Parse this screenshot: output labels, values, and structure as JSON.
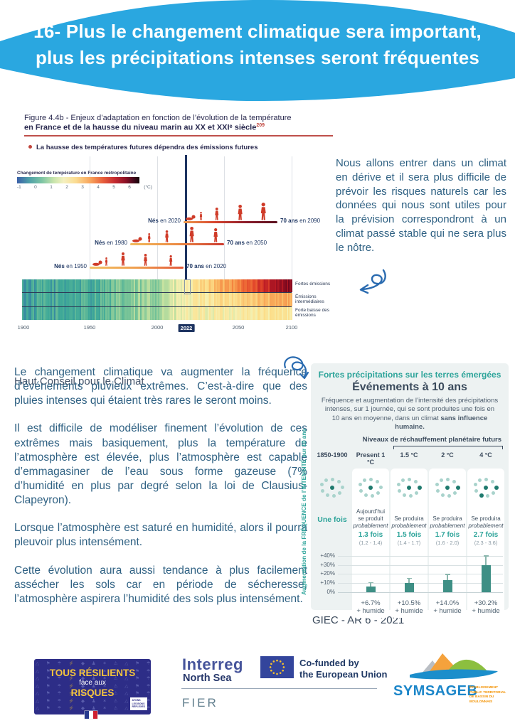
{
  "header": {
    "title_line1": "16- Plus le changement climatique sera important,",
    "title_line2": "plus les précipitations intenses seront fréquentes"
  },
  "figure": {
    "title_line1": "Figure 4.4b - Enjeux d’adaptation en fonction de l’évolution de la température",
    "title_line2": "en France et de la hausse du niveau marin au XX et XXIᵉ siècle",
    "title_sup": "209",
    "bullet": "La hausse des températures futures dépendra des émissions futures",
    "colorbar_label": "Changement de température en France métropolitaine",
    "colorbar_ticks": [
      "-1",
      "0",
      "1",
      "2",
      "3",
      "4",
      "5",
      "6"
    ],
    "colorbar_unit": "(°C)",
    "generations": [
      {
        "born_bold": "Nés",
        "born_rest": "en 1950",
        "seventy_bold": "70 ans",
        "seventy_rest": "en 2020"
      },
      {
        "born_bold": "Nés",
        "born_rest": "en 1980",
        "seventy_bold": "70 ans",
        "seventy_rest": "en 2050"
      },
      {
        "born_bold": "Nés",
        "born_rest": "en 2020",
        "seventy_bold": "70 ans",
        "seventy_rest": "en 2090"
      }
    ],
    "stripe_labels": [
      "Fortes émissions",
      "Émissions intermédiaires",
      "Forte baisse des émissions"
    ],
    "x_ticks": [
      "1900",
      "1950",
      "2000",
      "2022",
      "2050",
      "2100"
    ],
    "highlight_year": "2022",
    "source": "Haut Conseil pour le Climat"
  },
  "aside_text": "Nous allons entrer dans un climat en dérive et il sera plus difficile de prévoir les risques naturels car les données qui nous sont utiles pour la prévision correspondront à un climat passé stable qui ne sera plus le nôtre.",
  "body": {
    "p1": "Le changement climatique va augmenter la fréquence d’événements pluvieux extrêmes. C’est-à-dire que des pluies intenses qui étaient très rares le seront moins.",
    "p2": "Il est difficile de modéliser finement l’évolution de ces extrêmes mais basiquement, plus la température de l’atmosphère est élevée, plus l’atmosphère est capable d’emmagasiner de l’eau sous forme gazeuse (7% d’humidité en plus par degré selon la loi de Clausius-Clapeyron).",
    "p3": "Lorsque l’atmosphère est saturé en humidité, alors il pourra pleuvoir plus intensément.",
    "p4": "Cette évolution aura aussi tendance à plus facilement assécher les sols car en période de sécheresse, l’atmosphère aspirera l’humidité des sols plus intensément."
  },
  "precip_chart": {
    "title": "Fortes précipitations sur les terres émergées",
    "subtitle": "Événements à 10 ans",
    "description_pre": "Fréquence et augmentation de l’intensité des précipitations intenses, sur 1 journée, qui se sont produites une fois en 10 ans en moyenne, dans un climat ",
    "description_bold": "sans influence humaine.",
    "levels_label": "Niveaux de réchauffement planétaire futurs",
    "y_axis_label": "Augmentation de la FRÉQUENCE de l’INTENSITÉ sur 10 ans",
    "y_ticks": [
      "+40%",
      "+30%",
      "+20%",
      "+10%",
      "0%"
    ],
    "columns": [
      {
        "header": "1850-1900",
        "label": "Une fois",
        "dots_dark": 1
      },
      {
        "header": "Present 1 °C",
        "prob1": "Aujourd’hui",
        "prob2": "se produit",
        "prob3": "probablement",
        "times": "1.3 fois",
        "range": "(1.2 - 1.4)",
        "bar_value": 6.7,
        "bar_label1": "+6.7%",
        "bar_label2": "+ humide",
        "dots_dark": 1
      },
      {
        "header": "1.5 °C",
        "prob1": "Se produira",
        "prob2": "probablement",
        "times": "1.5 fois",
        "range": "(1.4 - 1.7)",
        "bar_value": 10.5,
        "bar_label1": "+10.5%",
        "bar_label2": "+ humide",
        "dots_dark": 2
      },
      {
        "header": "2 °C",
        "prob1": "Se produira",
        "prob2": "probablement",
        "times": "1.7 fois",
        "range": "(1.6 - 2.0)",
        "bar_value": 14.0,
        "bar_label1": "+14.0%",
        "bar_label2": "+ humide",
        "dots_dark": 2
      },
      {
        "header": "4 °C",
        "prob1": "Se produira",
        "prob2": "probablement",
        "times": "2.7 fois",
        "range": "(2.3 - 3.6)",
        "bar_value": 30.2,
        "bar_label1": "+30.2%",
        "bar_label2": "+ humide",
        "dots_dark": 3
      }
    ],
    "source": "GIEC - AR 6 - 2021"
  },
  "chart_data": [
    {
      "type": "bar",
      "title": "Fortes précipitations sur les terres émergées — Événements à 10 ans",
      "categories": [
        "1850-1900",
        "Present 1 °C",
        "1.5 °C",
        "2 °C",
        "4 °C"
      ],
      "frequency_fois": [
        1.0,
        1.3,
        1.5,
        1.7,
        2.7
      ],
      "frequency_ranges": [
        null,
        [
          1.2,
          1.4
        ],
        [
          1.4,
          1.7
        ],
        [
          1.6,
          2.0
        ],
        [
          2.3,
          3.6
        ]
      ],
      "values_intensity_increase_pct": [
        0,
        6.7,
        10.5,
        14.0,
        30.2
      ],
      "ylabel": "Augmentation de la FRÉQUENCE de l’INTENSITÉ sur 10 ans",
      "ylim": [
        0,
        40
      ],
      "legend_position": "none",
      "source": "GIEC - AR 6 - 2021"
    },
    {
      "type": "heatmap",
      "title": "Figure 4.4b - Enjeux d’adaptation en fonction de l’évolution de la température en France",
      "x_range": [
        1900,
        2100
      ],
      "x_ticks": [
        1900,
        1950,
        2000,
        2022,
        2050,
        2100
      ],
      "scenarios": [
        "Fortes émissions",
        "Émissions intermédiaires",
        "Forte baisse des émissions"
      ],
      "colorbar_range_c": [
        -1,
        6
      ],
      "highlight_year": 2022,
      "generations": [
        {
          "born": 1950,
          "age70": 2020
        },
        {
          "born": 1980,
          "age70": 2050
        },
        {
          "born": 2020,
          "age70": 2090
        }
      ],
      "source": "Haut Conseil pour le Climat"
    }
  ],
  "footer": {
    "resilients": {
      "line1": "TOUS RÉSILIENTS",
      "line2": "face aux",
      "line3": "RISQUES",
      "badge_l1": "AYONS",
      "badge_l2": "LES BONS",
      "badge_l3": "RÉFLEXES"
    },
    "interreg": {
      "name": "Interreg",
      "region": "North Sea",
      "fier": "FIER"
    },
    "eu": {
      "line1": "Co-funded by",
      "line2": "the European Union"
    },
    "symsageb": {
      "name": "SYMSAGEB",
      "sub1": "ÉTABLISSEMENT",
      "sub2": "PUBLIC TERRITORIAL",
      "sub3": "DE BASSIN DU BOULONNAIS"
    }
  },
  "colors": {
    "header_blue": "#2aa7e0",
    "body_text": "#2f6183",
    "figure_navy": "#2b2b50",
    "accent_red": "#c0443c",
    "teal": "#2da49a",
    "bar_teal": "#3e8f85",
    "resilients_navy": "#2d2d87"
  }
}
